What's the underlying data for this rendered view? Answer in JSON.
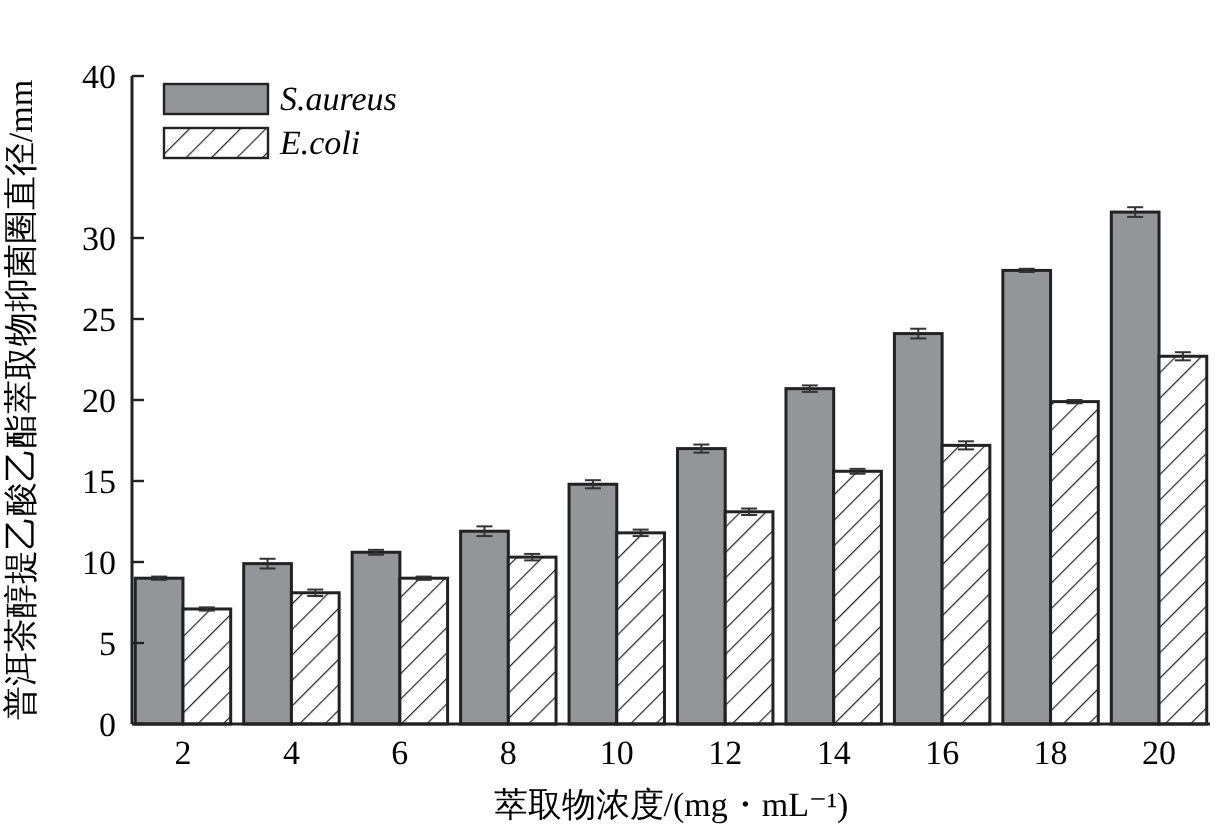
{
  "chart_data": {
    "type": "bar",
    "xlabel": "萃取物浓度/(mg・mL⁻¹)",
    "ylabel": "普洱茶醇提乙酸乙酯萃取物抑菌圈直径/mm",
    "categories": [
      "2",
      "4",
      "6",
      "8",
      "10",
      "12",
      "14",
      "16",
      "18",
      "20"
    ],
    "series": [
      {
        "name": "S.aureus",
        "color": "#939598",
        "values": [
          9.0,
          9.9,
          10.6,
          11.9,
          14.8,
          17.0,
          20.7,
          24.1,
          28.0,
          31.6
        ],
        "errors": [
          0.1,
          0.3,
          0.15,
          0.3,
          0.25,
          0.25,
          0.2,
          0.3,
          0.1,
          0.3
        ]
      },
      {
        "name": "E.coli",
        "color": "#222222",
        "values": [
          7.1,
          8.1,
          9.0,
          10.3,
          11.8,
          13.1,
          15.6,
          17.2,
          19.9,
          22.7
        ],
        "errors": [
          0.1,
          0.2,
          0.1,
          0.2,
          0.2,
          0.2,
          0.15,
          0.25,
          0.1,
          0.25
        ]
      }
    ],
    "ylim": [
      0,
      40
    ],
    "yticks": [
      0,
      5,
      10,
      15,
      20,
      25,
      30,
      40
    ],
    "grid": false,
    "legend": "top left"
  }
}
